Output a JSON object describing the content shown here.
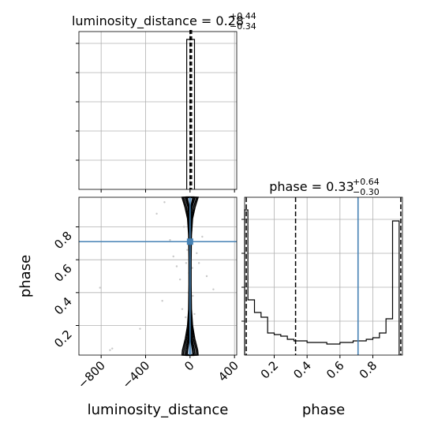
{
  "chart_data": [
    {
      "type": "histogram",
      "panel": "luminosity_distance-marginal",
      "title_parts": {
        "lhs": "luminosity_distance = 0.28",
        "sup": "+0.44",
        "sub": "−0.34"
      },
      "xlim": [
        -1000,
        420
      ],
      "ylim": [
        0,
        1
      ],
      "x_ticks": [
        -800,
        -400,
        0,
        400
      ],
      "bins": [
        {
          "x0": -30,
          "x1": 40,
          "value": 0.95
        }
      ],
      "quantile_lines": [
        -0.06,
        0.28,
        0.72
      ],
      "grid": true
    },
    {
      "type": "histogram",
      "panel": "phase-marginal",
      "title_parts": {
        "lhs": "phase = 0.33",
        "sup": "+0.64",
        "sub": "−0.30"
      },
      "xlabel": "phase",
      "xlim": [
        0.02,
        0.98
      ],
      "ylim": [
        0,
        1
      ],
      "x_ticks": [
        "0.2",
        "0.4",
        "0.6",
        "0.8"
      ],
      "bins": [
        {
          "x0": 0.02,
          "x1": 0.04,
          "value": 0.92
        },
        {
          "x0": 0.04,
          "x1": 0.08,
          "value": 0.35
        },
        {
          "x0": 0.08,
          "x1": 0.12,
          "value": 0.27
        },
        {
          "x0": 0.12,
          "x1": 0.16,
          "value": 0.24
        },
        {
          "x0": 0.16,
          "x1": 0.2,
          "value": 0.14
        },
        {
          "x0": 0.2,
          "x1": 0.24,
          "value": 0.13
        },
        {
          "x0": 0.24,
          "x1": 0.28,
          "value": 0.12
        },
        {
          "x0": 0.28,
          "x1": 0.32,
          "value": 0.1
        },
        {
          "x0": 0.32,
          "x1": 0.36,
          "value": 0.09
        },
        {
          "x0": 0.36,
          "x1": 0.4,
          "value": 0.09
        },
        {
          "x0": 0.4,
          "x1": 0.44,
          "value": 0.08
        },
        {
          "x0": 0.44,
          "x1": 0.48,
          "value": 0.08
        },
        {
          "x0": 0.48,
          "x1": 0.52,
          "value": 0.08
        },
        {
          "x0": 0.52,
          "x1": 0.56,
          "value": 0.07
        },
        {
          "x0": 0.56,
          "x1": 0.6,
          "value": 0.07
        },
        {
          "x0": 0.6,
          "x1": 0.64,
          "value": 0.08
        },
        {
          "x0": 0.64,
          "x1": 0.68,
          "value": 0.08
        },
        {
          "x0": 0.68,
          "x1": 0.72,
          "value": 0.09
        },
        {
          "x0": 0.72,
          "x1": 0.76,
          "value": 0.09
        },
        {
          "x0": 0.76,
          "x1": 0.8,
          "value": 0.1
        },
        {
          "x0": 0.8,
          "x1": 0.84,
          "value": 0.11
        },
        {
          "x0": 0.84,
          "x1": 0.88,
          "value": 0.14
        },
        {
          "x0": 0.88,
          "x1": 0.92,
          "value": 0.23
        },
        {
          "x0": 0.92,
          "x1": 0.96,
          "value": 0.85
        }
      ],
      "quantile_lines": [
        0.03,
        0.33,
        0.97
      ],
      "truth_line": 0.71,
      "grid": true
    },
    {
      "type": "scatter",
      "panel": "joint-2d",
      "xlabel": "luminosity_distance",
      "ylabel": "phase",
      "xlim": [
        -1000,
        420
      ],
      "ylim": [
        0.02,
        0.98
      ],
      "x_ticks": [
        "−800",
        "−400",
        "0",
        "400"
      ],
      "y_ticks": [
        "0.2",
        "0.4",
        "0.6",
        "0.8"
      ],
      "truth": {
        "x": 0,
        "y": 0.71
      },
      "points": [
        [
          -700,
          0.06
        ],
        [
          -720,
          0.05
        ],
        [
          -810,
          0.43
        ],
        [
          -450,
          0.18
        ],
        [
          -250,
          0.35
        ],
        [
          -300,
          0.88
        ],
        [
          -230,
          0.95
        ],
        [
          -180,
          0.72
        ],
        [
          -150,
          0.62
        ],
        [
          -120,
          0.56
        ],
        [
          -90,
          0.48
        ],
        [
          -70,
          0.3
        ],
        [
          -55,
          0.8
        ],
        [
          -40,
          0.25
        ],
        [
          -35,
          0.58
        ],
        [
          -25,
          0.66
        ],
        [
          -20,
          0.15
        ],
        [
          -15,
          0.4
        ],
        [
          -10,
          0.85
        ],
        [
          -8,
          0.52
        ],
        [
          -5,
          0.7
        ],
        [
          0,
          0.33
        ],
        [
          5,
          0.45
        ],
        [
          8,
          0.62
        ],
        [
          10,
          0.12
        ],
        [
          15,
          0.78
        ],
        [
          20,
          0.55
        ],
        [
          25,
          0.38
        ],
        [
          30,
          0.9
        ],
        [
          40,
          0.27
        ],
        [
          60,
          0.64
        ],
        [
          80,
          0.58
        ],
        [
          110,
          0.74
        ],
        [
          150,
          0.5
        ],
        [
          210,
          0.42
        ]
      ],
      "contour_halfwidths": [
        {
          "y": 0.98,
          "w": [
            30,
            45,
            60,
            72
          ]
        },
        {
          "y": 0.92,
          "w": [
            8,
            18,
            32,
            45
          ]
        },
        {
          "y": 0.85,
          "w": [
            3,
            8,
            15,
            22
          ]
        },
        {
          "y": 0.75,
          "w": [
            2,
            4,
            8,
            12
          ]
        },
        {
          "y": 0.6,
          "w": [
            1,
            3,
            6,
            9
          ]
        },
        {
          "y": 0.45,
          "w": [
            1,
            3,
            6,
            9
          ]
        },
        {
          "y": 0.3,
          "w": [
            2,
            4,
            8,
            12
          ]
        },
        {
          "y": 0.2,
          "w": [
            3,
            8,
            14,
            22
          ]
        },
        {
          "y": 0.12,
          "w": [
            8,
            18,
            30,
            42
          ]
        },
        {
          "y": 0.05,
          "w": [
            25,
            40,
            55,
            68
          ]
        },
        {
          "y": 0.02,
          "w": [
            30,
            45,
            60,
            72
          ]
        }
      ],
      "grid": true
    }
  ]
}
